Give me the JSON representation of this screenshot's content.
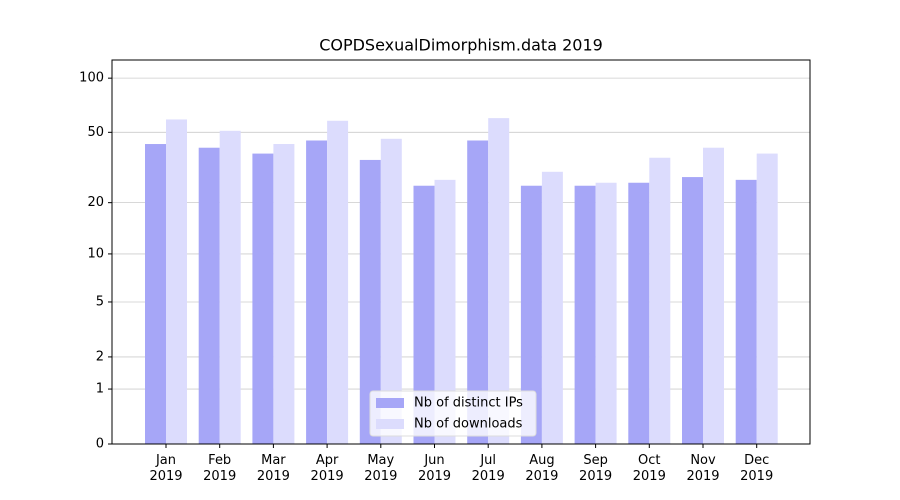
{
  "chart_data": {
    "type": "bar",
    "title": "COPDSexualDimorphism.data 2019",
    "categories": [
      "Jan\n2019",
      "Feb\n2019",
      "Mar\n2019",
      "Apr\n2019",
      "May\n2019",
      "Jun\n2019",
      "Jul\n2019",
      "Aug\n2019",
      "Sep\n2019",
      "Oct\n2019",
      "Nov\n2019",
      "Dec\n2019"
    ],
    "series": [
      {
        "name": "Nb of distinct IPs",
        "color": "#a6a6f7",
        "values": [
          43,
          41,
          38,
          45,
          35,
          25,
          45,
          25,
          25,
          26,
          28,
          27
        ]
      },
      {
        "name": "Nb of downloads",
        "color": "#dcdcfd",
        "values": [
          59,
          51,
          43,
          58,
          46,
          27,
          60,
          30,
          26,
          36,
          41,
          38
        ]
      }
    ],
    "yscale": "log1p",
    "ylim": [
      0,
      126
    ],
    "yticks": [
      0,
      1,
      2,
      5,
      10,
      20,
      50,
      100
    ],
    "grid": true,
    "legend": "lower center"
  }
}
